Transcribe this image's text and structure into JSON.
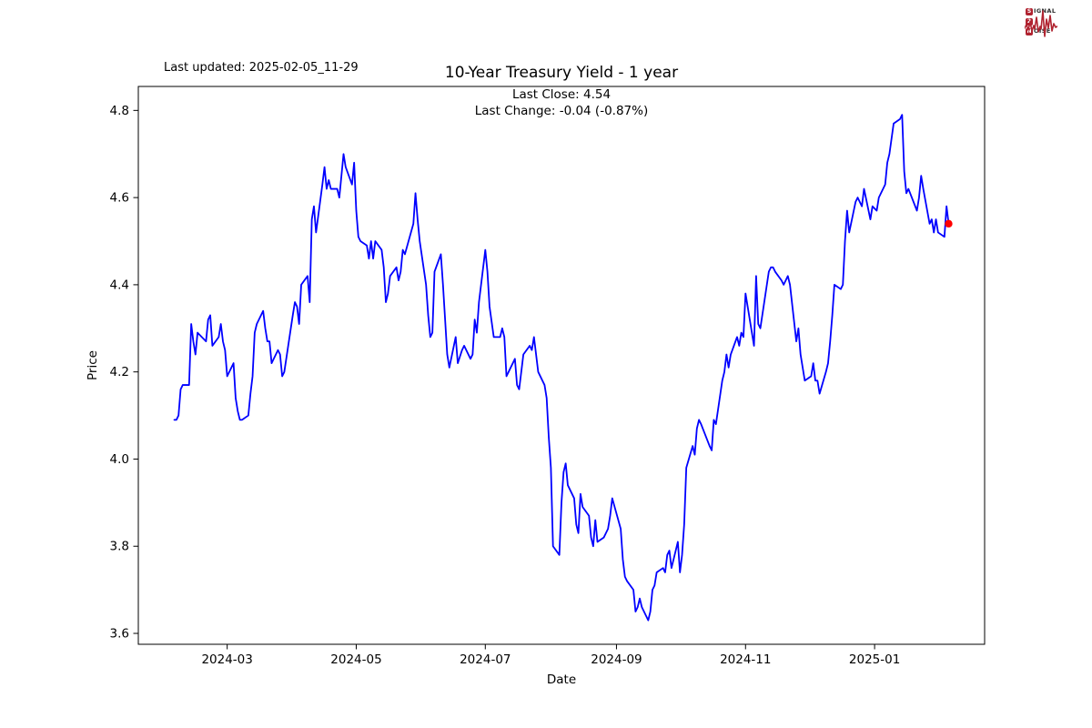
{
  "header": {
    "last_updated": "Last updated: 2025-02-05_11-29",
    "title": "10-Year Treasury Yield - 1 year",
    "subtitle_line1": "Last Close: 4.54",
    "subtitle_line2": "Last Change: -0.04 (-0.87%)"
  },
  "logo": {
    "brand_color": "#b02330",
    "word1_initial": "S",
    "word1_rest": "IGNAL",
    "word2_initial": "2",
    "word2_rest": "",
    "word3_initial": "N",
    "word3_rest": "OISE"
  },
  "chart_data": {
    "type": "line",
    "title": "10-Year Treasury Yield - 1 year",
    "xlabel": "Date",
    "ylabel": "Price",
    "grid": false,
    "legend": "none",
    "line_color": "#0000ff",
    "last_point_color": "#ff0000",
    "last_close": 4.54,
    "last_change": -0.04,
    "last_change_pct": -0.87,
    "ylim": [
      3.575,
      4.855
    ],
    "x_pad_days": 17,
    "y_ticks": [
      3.6,
      3.8,
      4.0,
      4.2,
      4.4,
      4.6,
      4.8
    ],
    "x_ticks": [
      "2024-03",
      "2024-05",
      "2024-07",
      "2024-09",
      "2024-11",
      "2025-01"
    ],
    "dates": [
      "2024-02-05",
      "2024-02-06",
      "2024-02-07",
      "2024-02-08",
      "2024-02-09",
      "2024-02-12",
      "2024-02-13",
      "2024-02-14",
      "2024-02-15",
      "2024-02-16",
      "2024-02-20",
      "2024-02-21",
      "2024-02-22",
      "2024-02-23",
      "2024-02-26",
      "2024-02-27",
      "2024-02-28",
      "2024-02-29",
      "2024-03-01",
      "2024-03-04",
      "2024-03-05",
      "2024-03-06",
      "2024-03-07",
      "2024-03-08",
      "2024-03-11",
      "2024-03-12",
      "2024-03-13",
      "2024-03-14",
      "2024-03-15",
      "2024-03-18",
      "2024-03-19",
      "2024-03-20",
      "2024-03-21",
      "2024-03-22",
      "2024-03-25",
      "2024-03-26",
      "2024-03-27",
      "2024-03-28",
      "2024-04-01",
      "2024-04-02",
      "2024-04-03",
      "2024-04-04",
      "2024-04-05",
      "2024-04-08",
      "2024-04-09",
      "2024-04-10",
      "2024-04-11",
      "2024-04-12",
      "2024-04-15",
      "2024-04-16",
      "2024-04-17",
      "2024-04-18",
      "2024-04-19",
      "2024-04-22",
      "2024-04-23",
      "2024-04-24",
      "2024-04-25",
      "2024-04-26",
      "2024-04-29",
      "2024-04-30",
      "2024-05-01",
      "2024-05-02",
      "2024-05-03",
      "2024-05-06",
      "2024-05-07",
      "2024-05-08",
      "2024-05-09",
      "2024-05-10",
      "2024-05-13",
      "2024-05-14",
      "2024-05-15",
      "2024-05-16",
      "2024-05-17",
      "2024-05-20",
      "2024-05-21",
      "2024-05-22",
      "2024-05-23",
      "2024-05-24",
      "2024-05-28",
      "2024-05-29",
      "2024-05-30",
      "2024-05-31",
      "2024-06-03",
      "2024-06-04",
      "2024-06-05",
      "2024-06-06",
      "2024-06-07",
      "2024-06-10",
      "2024-06-11",
      "2024-06-12",
      "2024-06-13",
      "2024-06-14",
      "2024-06-17",
      "2024-06-18",
      "2024-06-20",
      "2024-06-21",
      "2024-06-24",
      "2024-06-25",
      "2024-06-26",
      "2024-06-27",
      "2024-06-28",
      "2024-07-01",
      "2024-07-02",
      "2024-07-03",
      "2024-07-05",
      "2024-07-08",
      "2024-07-09",
      "2024-07-10",
      "2024-07-11",
      "2024-07-12",
      "2024-07-15",
      "2024-07-16",
      "2024-07-17",
      "2024-07-18",
      "2024-07-19",
      "2024-07-22",
      "2024-07-23",
      "2024-07-24",
      "2024-07-25",
      "2024-07-26",
      "2024-07-29",
      "2024-07-30",
      "2024-07-31",
      "2024-08-01",
      "2024-08-02",
      "2024-08-05",
      "2024-08-06",
      "2024-08-07",
      "2024-08-08",
      "2024-08-09",
      "2024-08-12",
      "2024-08-13",
      "2024-08-14",
      "2024-08-15",
      "2024-08-16",
      "2024-08-19",
      "2024-08-20",
      "2024-08-21",
      "2024-08-22",
      "2024-08-23",
      "2024-08-26",
      "2024-08-27",
      "2024-08-28",
      "2024-08-29",
      "2024-08-30",
      "2024-09-03",
      "2024-09-04",
      "2024-09-05",
      "2024-09-06",
      "2024-09-09",
      "2024-09-10",
      "2024-09-11",
      "2024-09-12",
      "2024-09-13",
      "2024-09-16",
      "2024-09-17",
      "2024-09-18",
      "2024-09-19",
      "2024-09-20",
      "2024-09-23",
      "2024-09-24",
      "2024-09-25",
      "2024-09-26",
      "2024-09-27",
      "2024-09-30",
      "2024-10-01",
      "2024-10-02",
      "2024-10-03",
      "2024-10-04",
      "2024-10-07",
      "2024-10-08",
      "2024-10-09",
      "2024-10-10",
      "2024-10-11",
      "2024-10-15",
      "2024-10-16",
      "2024-10-17",
      "2024-10-18",
      "2024-10-21",
      "2024-10-22",
      "2024-10-23",
      "2024-10-24",
      "2024-10-25",
      "2024-10-28",
      "2024-10-29",
      "2024-10-30",
      "2024-10-31",
      "2024-11-01",
      "2024-11-04",
      "2024-11-05",
      "2024-11-06",
      "2024-11-07",
      "2024-11-08",
      "2024-11-12",
      "2024-11-13",
      "2024-11-14",
      "2024-11-15",
      "2024-11-18",
      "2024-11-19",
      "2024-11-20",
      "2024-11-21",
      "2024-11-22",
      "2024-11-25",
      "2024-11-26",
      "2024-11-27",
      "2024-11-29",
      "2024-12-02",
      "2024-12-03",
      "2024-12-04",
      "2024-12-05",
      "2024-12-06",
      "2024-12-09",
      "2024-12-10",
      "2024-12-11",
      "2024-12-12",
      "2024-12-13",
      "2024-12-16",
      "2024-12-17",
      "2024-12-18",
      "2024-12-19",
      "2024-12-20",
      "2024-12-23",
      "2024-12-24",
      "2024-12-26",
      "2024-12-27",
      "2024-12-30",
      "2024-12-31",
      "2025-01-02",
      "2025-01-03",
      "2025-01-06",
      "2025-01-07",
      "2025-01-08",
      "2025-01-10",
      "2025-01-13",
      "2025-01-14",
      "2025-01-15",
      "2025-01-16",
      "2025-01-17",
      "2025-01-21",
      "2025-01-22",
      "2025-01-23",
      "2025-01-24",
      "2025-01-27",
      "2025-01-28",
      "2025-01-29",
      "2025-01-30",
      "2025-01-31",
      "2025-02-03",
      "2025-02-04",
      "2025-02-05"
    ],
    "values": [
      4.09,
      4.09,
      4.1,
      4.16,
      4.17,
      4.17,
      4.31,
      4.27,
      4.24,
      4.29,
      4.27,
      4.32,
      4.33,
      4.26,
      4.28,
      4.31,
      4.27,
      4.25,
      4.19,
      4.22,
      4.14,
      4.11,
      4.09,
      4.09,
      4.1,
      4.15,
      4.19,
      4.29,
      4.31,
      4.34,
      4.3,
      4.27,
      4.27,
      4.22,
      4.25,
      4.24,
      4.19,
      4.2,
      4.33,
      4.36,
      4.35,
      4.31,
      4.4,
      4.42,
      4.36,
      4.55,
      4.58,
      4.52,
      4.63,
      4.67,
      4.62,
      4.64,
      4.62,
      4.62,
      4.6,
      4.65,
      4.7,
      4.67,
      4.63,
      4.68,
      4.57,
      4.51,
      4.5,
      4.49,
      4.46,
      4.5,
      4.46,
      4.5,
      4.48,
      4.44,
      4.36,
      4.38,
      4.42,
      4.44,
      4.41,
      4.43,
      4.48,
      4.47,
      4.54,
      4.61,
      4.55,
      4.5,
      4.4,
      4.33,
      4.28,
      4.29,
      4.43,
      4.47,
      4.4,
      4.32,
      4.24,
      4.21,
      4.28,
      4.22,
      4.25,
      4.26,
      4.23,
      4.24,
      4.32,
      4.29,
      4.36,
      4.48,
      4.43,
      4.35,
      4.28,
      4.28,
      4.3,
      4.28,
      4.19,
      4.2,
      4.23,
      4.17,
      4.16,
      4.2,
      4.24,
      4.26,
      4.25,
      4.28,
      4.24,
      4.2,
      4.17,
      4.14,
      4.05,
      3.98,
      3.8,
      3.78,
      3.9,
      3.97,
      3.99,
      3.94,
      3.91,
      3.85,
      3.83,
      3.92,
      3.89,
      3.87,
      3.82,
      3.8,
      3.86,
      3.81,
      3.82,
      3.83,
      3.84,
      3.87,
      3.91,
      3.84,
      3.77,
      3.73,
      3.72,
      3.7,
      3.65,
      3.66,
      3.68,
      3.66,
      3.63,
      3.65,
      3.7,
      3.71,
      3.74,
      3.75,
      3.74,
      3.78,
      3.79,
      3.75,
      3.81,
      3.74,
      3.78,
      3.85,
      3.98,
      4.03,
      4.01,
      4.07,
      4.09,
      4.08,
      4.03,
      4.02,
      4.09,
      4.08,
      4.18,
      4.2,
      4.24,
      4.21,
      4.24,
      4.28,
      4.26,
      4.29,
      4.28,
      4.38,
      4.29,
      4.26,
      4.42,
      4.31,
      4.3,
      4.43,
      4.44,
      4.44,
      4.43,
      4.41,
      4.4,
      4.41,
      4.42,
      4.4,
      4.27,
      4.3,
      4.24,
      4.18,
      4.19,
      4.22,
      4.18,
      4.18,
      4.15,
      4.2,
      4.22,
      4.27,
      4.33,
      4.4,
      4.39,
      4.4,
      4.5,
      4.57,
      4.52,
      4.59,
      4.6,
      4.58,
      4.62,
      4.55,
      4.58,
      4.57,
      4.6,
      4.63,
      4.68,
      4.7,
      4.77,
      4.78,
      4.79,
      4.66,
      4.61,
      4.62,
      4.57,
      4.6,
      4.65,
      4.62,
      4.54,
      4.55,
      4.52,
      4.55,
      4.52,
      4.51,
      4.58,
      4.54
    ]
  }
}
